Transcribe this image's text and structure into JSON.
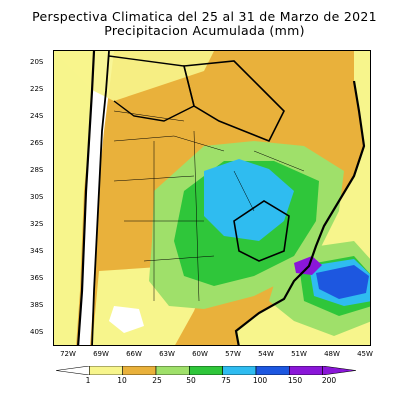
{
  "title": {
    "line1": "Perspectiva Climatica del 25 al 31 de Marzo de 2021",
    "line2": "Precipitacion Acumulada (mm)"
  },
  "map": {
    "lat_ticks": [
      "20S",
      "22S",
      "24S",
      "26S",
      "28S",
      "30S",
      "32S",
      "34S",
      "36S",
      "38S",
      "40S"
    ],
    "lon_ticks": [
      "72W",
      "69W",
      "66W",
      "63W",
      "60W",
      "57W",
      "54W",
      "51W",
      "48W",
      "45W"
    ],
    "lon_range": [
      -73.5,
      -45
    ],
    "lat_range": [
      -19,
      -41.5
    ]
  },
  "legend": {
    "labels": [
      "1",
      "10",
      "25",
      "50",
      "75",
      "100",
      "150",
      "200"
    ],
    "bins": [
      {
        "color": "#ffffff"
      },
      {
        "color": "#f7f58c"
      },
      {
        "color": "#e9b13b"
      },
      {
        "color": "#9fe06a"
      },
      {
        "color": "#2fc63a"
      },
      {
        "color": "#2fbcf0"
      },
      {
        "color": "#1d57e0"
      },
      {
        "color": "#8a16d8"
      }
    ]
  }
}
